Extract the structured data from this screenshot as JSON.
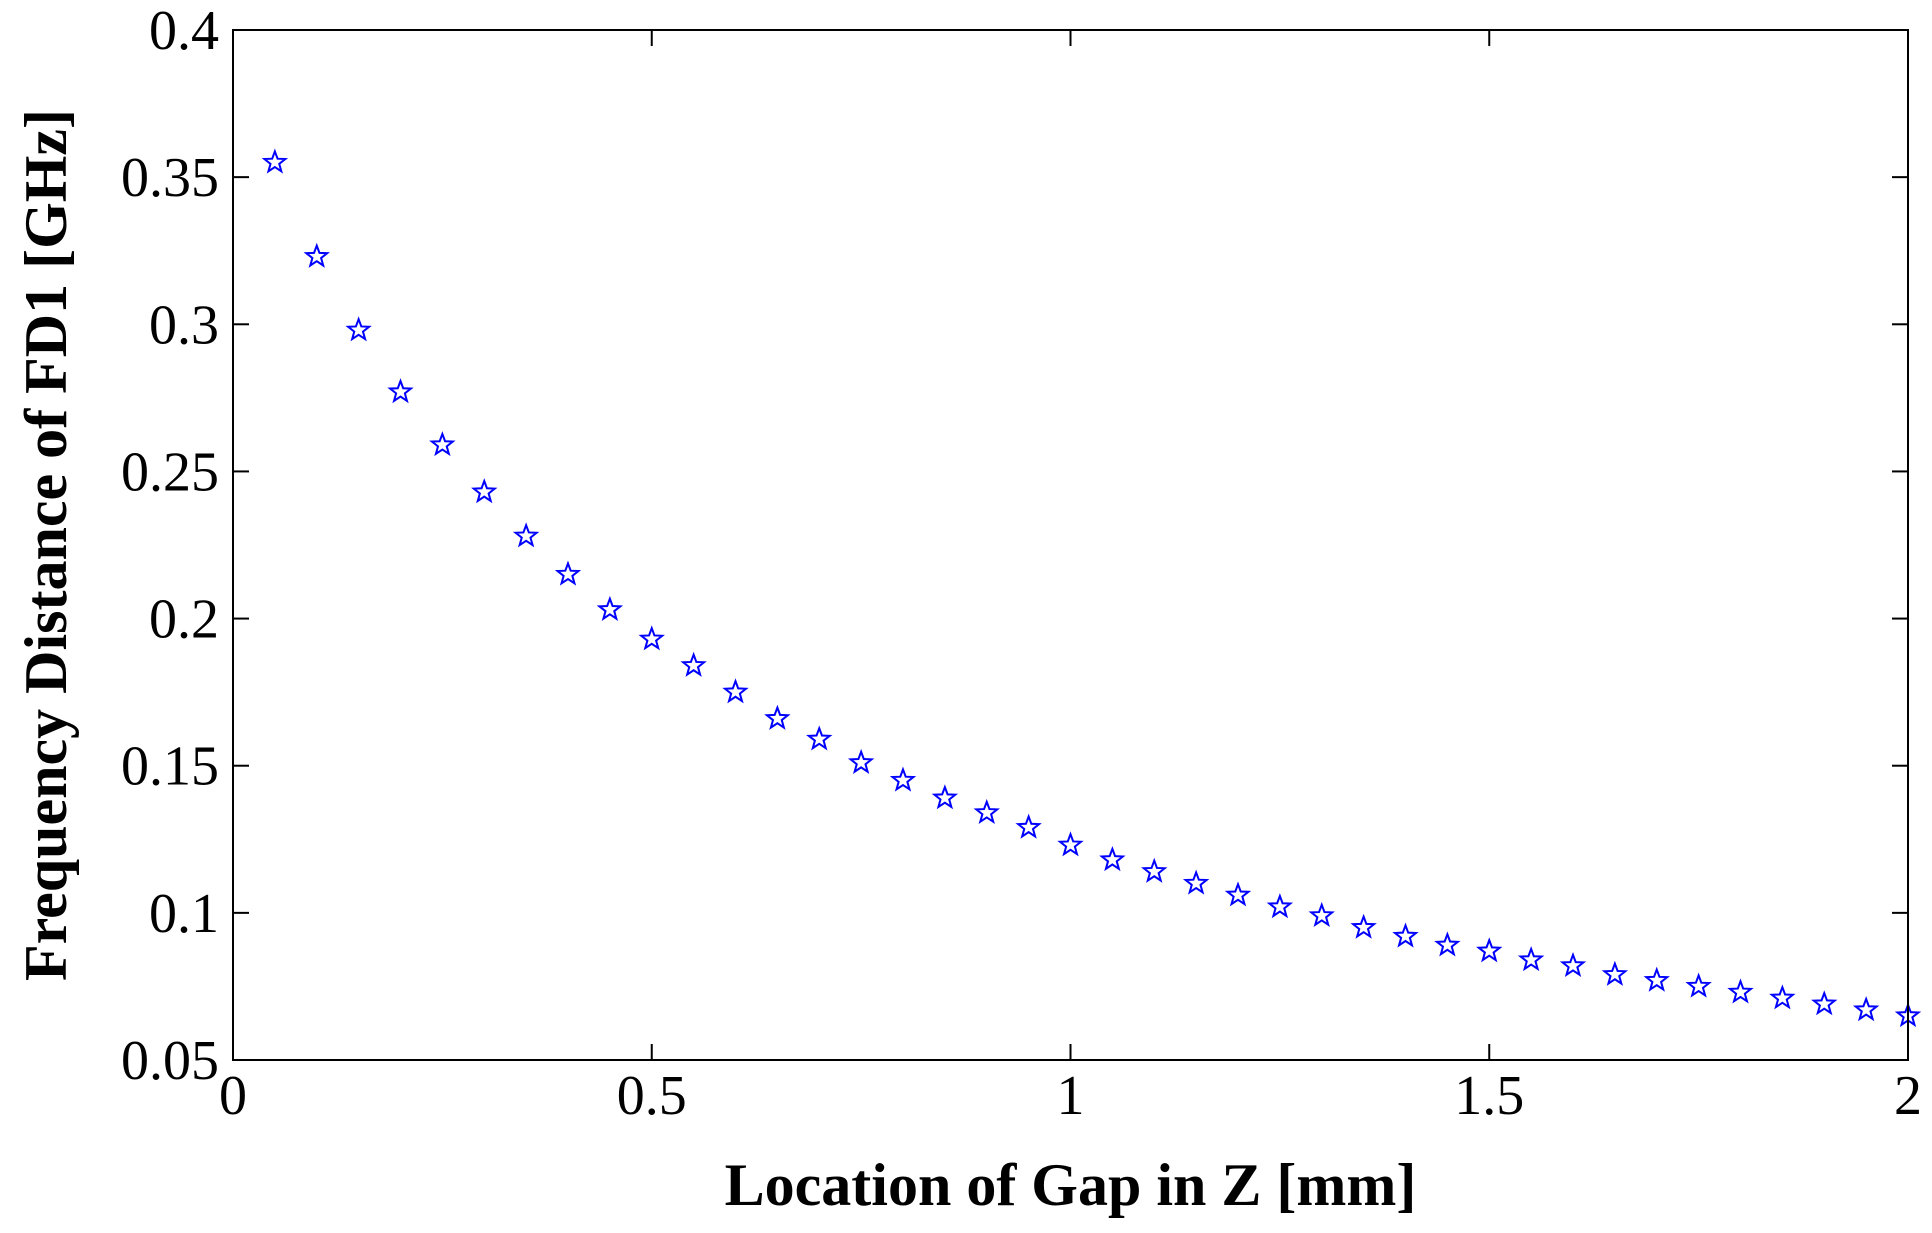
{
  "chart_data": {
    "type": "scatter",
    "title": "",
    "xlabel": "Location of Gap in Z [mm]",
    "ylabel": "Frequency Distance of FD1 [GHz]",
    "xlim": [
      0,
      2
    ],
    "ylim": [
      0.05,
      0.4
    ],
    "xticks": [
      0,
      0.5,
      1,
      1.5,
      2
    ],
    "xtick_labels": [
      "0",
      "0.5",
      "1",
      "1.5",
      "2"
    ],
    "yticks": [
      0.05,
      0.1,
      0.15,
      0.2,
      0.25,
      0.3,
      0.35,
      0.4
    ],
    "ytick_labels": [
      "0.05",
      "0.1",
      "0.15",
      "0.2",
      "0.25",
      "0.3",
      "0.35",
      "0.4"
    ],
    "grid": false,
    "marker": "star",
    "marker_color": "#0000ff",
    "series": [
      {
        "x": [
          0.05,
          0.1,
          0.15,
          0.2,
          0.25,
          0.3,
          0.35,
          0.4,
          0.45,
          0.5,
          0.55,
          0.6,
          0.65,
          0.7,
          0.75,
          0.8,
          0.85,
          0.9,
          0.95,
          1.0,
          1.05,
          1.1,
          1.15,
          1.2,
          1.25,
          1.3,
          1.35,
          1.4,
          1.45,
          1.5,
          1.55,
          1.6,
          1.65,
          1.7,
          1.75,
          1.8,
          1.85,
          1.9,
          1.95,
          2.0
        ],
        "y": [
          0.355,
          0.323,
          0.298,
          0.277,
          0.259,
          0.243,
          0.228,
          0.215,
          0.203,
          0.193,
          0.184,
          0.175,
          0.166,
          0.159,
          0.151,
          0.145,
          0.139,
          0.134,
          0.129,
          0.123,
          0.118,
          0.114,
          0.11,
          0.106,
          0.102,
          0.099,
          0.095,
          0.092,
          0.089,
          0.087,
          0.084,
          0.082,
          0.079,
          0.077,
          0.075,
          0.073,
          0.071,
          0.069,
          0.067,
          0.065
        ]
      }
    ]
  }
}
